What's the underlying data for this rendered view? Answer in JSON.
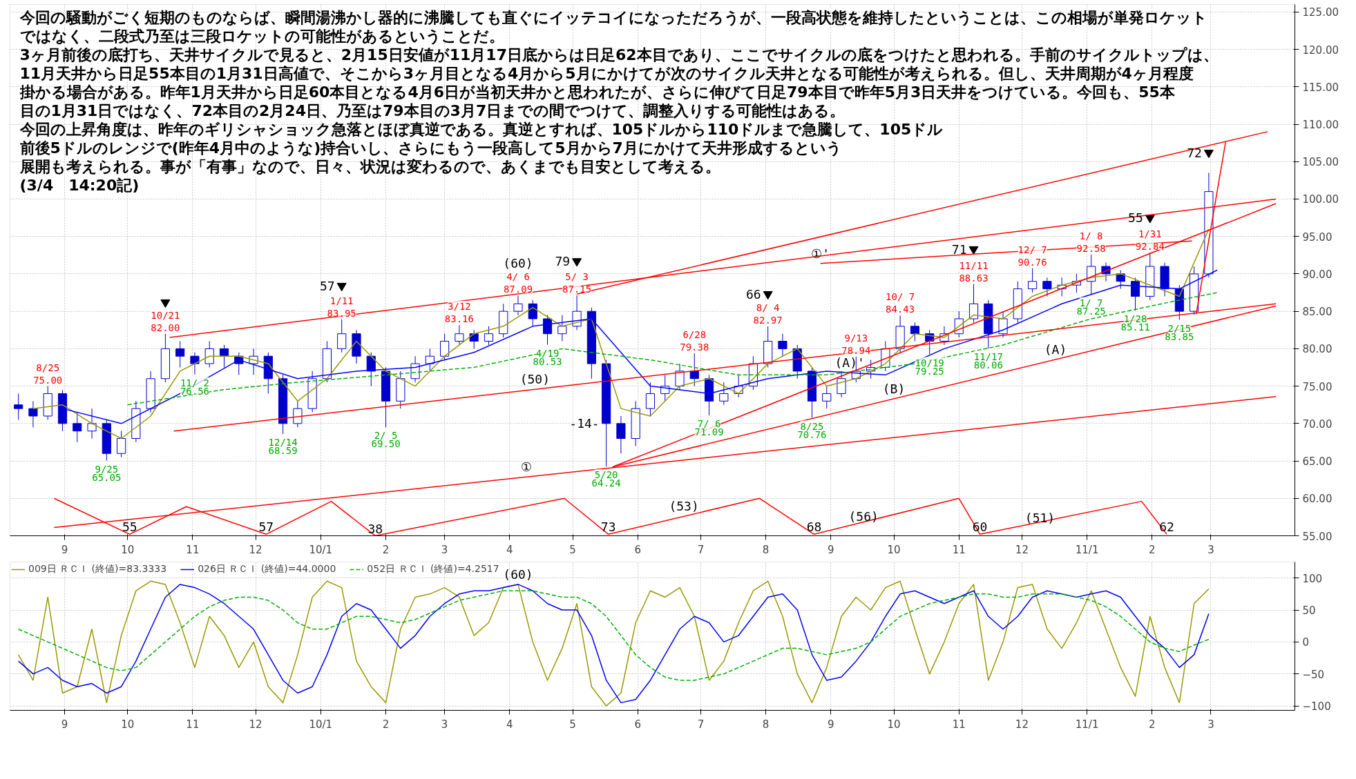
{
  "chart_data": [
    {
      "type": "candlestick",
      "color": "#0000cd",
      "grid": true,
      "xlim": [
        "2009-08-06",
        "2011-04-10"
      ],
      "ylim": [
        55,
        126
      ],
      "xticks": [
        {
          "value": "2009-09-01",
          "label": "9"
        },
        {
          "value": "2009-10-01",
          "label": "10"
        },
        {
          "value": "2009-11-01",
          "label": "11"
        },
        {
          "value": "2009-12-01",
          "label": "12"
        },
        {
          "value": "2010-01-01",
          "label": "10/1"
        },
        {
          "value": "2010-02-01",
          "label": "2"
        },
        {
          "value": "2010-03-01",
          "label": "3"
        },
        {
          "value": "2010-04-01",
          "label": "4"
        },
        {
          "value": "2010-05-01",
          "label": "5"
        },
        {
          "value": "2010-06-01",
          "label": "6"
        },
        {
          "value": "2010-07-01",
          "label": "7"
        },
        {
          "value": "2010-08-01",
          "label": "8"
        },
        {
          "value": "2010-09-01",
          "label": "9"
        },
        {
          "value": "2010-10-01",
          "label": "10"
        },
        {
          "value": "2010-11-01",
          "label": "11"
        },
        {
          "value": "2010-12-01",
          "label": "12"
        },
        {
          "value": "2011-01-01",
          "label": "11/1"
        },
        {
          "value": "2011-02-01",
          "label": "2"
        },
        {
          "value": "2011-03-01",
          "label": "3"
        }
      ],
      "yticks": [
        {
          "value": 55,
          "label": "55.00"
        },
        {
          "value": 60,
          "label": "60.00"
        },
        {
          "value": 65,
          "label": "65.00"
        },
        {
          "value": 70,
          "label": "70.00"
        },
        {
          "value": 75,
          "label": "75.00"
        },
        {
          "value": 80,
          "label": "80.00"
        },
        {
          "value": 85,
          "label": "85.00"
        },
        {
          "value": 90,
          "label": "90.00"
        },
        {
          "value": 95,
          "label": "95.00"
        },
        {
          "value": 100,
          "label": "100.00"
        },
        {
          "value": 105,
          "label": "105.00"
        },
        {
          "value": 110,
          "label": "110.00"
        },
        {
          "value": 115,
          "label": "115.00"
        },
        {
          "value": 120,
          "label": "120.00"
        },
        {
          "value": 125,
          "label": "125.00"
        }
      ],
      "x": [
        "2009-08-10",
        "2009-08-17",
        "2009-08-24",
        "2009-08-31",
        "2009-09-07",
        "2009-09-14",
        "2009-09-21",
        "2009-09-28",
        "2009-10-05",
        "2009-10-12",
        "2009-10-19",
        "2009-10-26",
        "2009-11-02",
        "2009-11-09",
        "2009-11-16",
        "2009-11-23",
        "2009-11-30",
        "2009-12-07",
        "2009-12-14",
        "2009-12-21",
        "2009-12-28",
        "2010-01-04",
        "2010-01-11",
        "2010-01-18",
        "2010-01-25",
        "2010-02-01",
        "2010-02-08",
        "2010-02-15",
        "2010-02-22",
        "2010-03-01",
        "2010-03-08",
        "2010-03-15",
        "2010-03-22",
        "2010-03-29",
        "2010-04-05",
        "2010-04-12",
        "2010-04-19",
        "2010-04-26",
        "2010-05-03",
        "2010-05-10",
        "2010-05-17",
        "2010-05-24",
        "2010-05-31",
        "2010-06-07",
        "2010-06-14",
        "2010-06-21",
        "2010-06-28",
        "2010-07-05",
        "2010-07-12",
        "2010-07-19",
        "2010-07-26",
        "2010-08-02",
        "2010-08-09",
        "2010-08-16",
        "2010-08-23",
        "2010-08-30",
        "2010-09-06",
        "2010-09-13",
        "2010-09-20",
        "2010-09-27",
        "2010-10-04",
        "2010-10-11",
        "2010-10-18",
        "2010-10-25",
        "2010-11-01",
        "2010-11-08",
        "2010-11-15",
        "2010-11-22",
        "2010-11-29",
        "2010-12-06",
        "2010-12-13",
        "2010-12-20",
        "2010-12-27",
        "2011-01-03",
        "2011-01-10",
        "2011-01-17",
        "2011-01-24",
        "2011-01-31",
        "2011-02-07",
        "2011-02-14",
        "2011-02-21",
        "2011-02-28"
      ],
      "ohlc": [
        [
          72.5,
          74,
          70.5,
          72
        ],
        [
          72,
          73,
          69.5,
          71
        ],
        [
          71,
          75.0,
          70.5,
          74
        ],
        [
          74,
          74.5,
          69,
          70
        ],
        [
          70,
          71.5,
          67.5,
          69
        ],
        [
          69,
          72,
          68,
          70
        ],
        [
          70,
          70.5,
          65.05,
          66
        ],
        [
          66,
          69,
          65.5,
          68
        ],
        [
          68,
          73,
          67.5,
          72
        ],
        [
          72,
          77,
          71.5,
          76
        ],
        [
          76,
          82.0,
          75.5,
          80
        ],
        [
          80,
          81,
          77.5,
          79
        ],
        [
          79,
          79.5,
          76.56,
          78
        ],
        [
          78,
          81,
          77.5,
          80
        ],
        [
          80,
          80.5,
          77.5,
          79
        ],
        [
          79,
          79.5,
          76.5,
          78
        ],
        [
          78,
          80,
          76.5,
          79
        ],
        [
          79,
          79.5,
          74,
          76
        ],
        [
          76,
          76.5,
          68.59,
          70
        ],
        [
          70,
          73,
          69.5,
          72
        ],
        [
          72,
          77,
          71.5,
          76
        ],
        [
          76,
          81,
          75.5,
          80
        ],
        [
          80,
          83.95,
          79.5,
          82
        ],
        [
          82,
          82.5,
          78,
          79
        ],
        [
          79,
          79.5,
          75,
          77
        ],
        [
          77,
          77.5,
          69.5,
          73
        ],
        [
          73,
          77,
          72,
          76
        ],
        [
          76,
          79,
          75.5,
          78
        ],
        [
          78,
          80,
          77,
          79
        ],
        [
          79,
          82,
          78.5,
          81
        ],
        [
          81,
          83.16,
          80.5,
          82
        ],
        [
          82,
          82.5,
          80,
          81
        ],
        [
          81,
          83,
          80.5,
          82
        ],
        [
          82,
          86,
          81.5,
          85
        ],
        [
          85,
          87.09,
          84.5,
          86
        ],
        [
          86,
          86.5,
          83,
          84
        ],
        [
          84,
          84.5,
          80.53,
          82
        ],
        [
          82,
          84.5,
          81,
          83
        ],
        [
          83,
          87.15,
          82.5,
          85
        ],
        [
          85,
          85.5,
          76,
          78
        ],
        [
          78,
          78.5,
          64.24,
          70
        ],
        [
          70,
          71,
          66,
          68
        ],
        [
          68,
          73,
          67,
          72
        ],
        [
          72,
          75.5,
          71,
          74
        ],
        [
          74,
          76.5,
          73,
          75
        ],
        [
          75,
          78,
          74.5,
          77
        ],
        [
          77,
          79.38,
          75,
          76
        ],
        [
          76,
          76.5,
          71.09,
          73
        ],
        [
          73,
          75.5,
          72.5,
          74
        ],
        [
          74,
          76.5,
          73.5,
          75
        ],
        [
          75,
          79,
          74.5,
          78
        ],
        [
          78,
          82.97,
          77.5,
          81
        ],
        [
          81,
          82,
          79,
          80
        ],
        [
          80,
          80.5,
          76,
          77
        ],
        [
          77,
          77.5,
          70.76,
          73
        ],
        [
          73,
          75,
          72,
          74
        ],
        [
          74,
          77,
          73.5,
          76
        ],
        [
          76,
          78.94,
          75.5,
          77
        ],
        [
          77,
          78.5,
          76,
          77.5
        ],
        [
          77.5,
          81,
          77,
          80
        ],
        [
          80,
          84.43,
          79.5,
          83
        ],
        [
          83,
          83.5,
          81,
          82
        ],
        [
          82,
          82.5,
          79.25,
          81
        ],
        [
          81,
          83,
          80.5,
          82
        ],
        [
          82,
          85,
          81.5,
          84
        ],
        [
          84,
          88.63,
          83.5,
          86
        ],
        [
          86,
          86.5,
          80.06,
          82
        ],
        [
          82,
          85,
          81.5,
          84
        ],
        [
          84,
          89,
          83.5,
          88
        ],
        [
          88,
          90.76,
          87.5,
          89
        ],
        [
          89,
          89.5,
          87,
          88
        ],
        [
          88,
          89.5,
          87,
          88.5
        ],
        [
          88.5,
          90,
          87.5,
          89
        ],
        [
          89,
          92.58,
          87.25,
          91
        ],
        [
          91,
          91.5,
          89,
          90
        ],
        [
          90,
          90.5,
          88,
          89
        ],
        [
          89,
          89.5,
          85.11,
          87
        ],
        [
          87,
          92.84,
          86.5,
          91
        ],
        [
          91,
          91.5,
          87,
          88
        ],
        [
          88,
          88.5,
          83.85,
          85
        ],
        [
          85,
          91,
          84.5,
          90
        ],
        [
          90,
          103.5,
          89.5,
          101
        ]
      ],
      "series": [
        {
          "type": "line",
          "color": "#999900",
          "x": [
            "2009-08-17",
            "2009-08-31",
            "2009-09-14",
            "2009-09-28",
            "2009-10-12",
            "2009-10-26",
            "2009-11-09",
            "2009-11-23",
            "2009-12-07",
            "2009-12-21",
            "2010-01-04",
            "2010-01-18",
            "2010-02-01",
            "2010-02-15",
            "2010-03-01",
            "2010-03-15",
            "2010-03-29",
            "2010-04-12",
            "2010-04-26",
            "2010-05-10",
            "2010-05-24",
            "2010-06-07",
            "2010-06-21",
            "2010-07-05",
            "2010-07-19",
            "2010-08-02",
            "2010-08-16",
            "2010-08-30",
            "2010-09-13",
            "2010-09-27",
            "2010-10-11",
            "2010-10-25",
            "2010-11-08",
            "2010-11-22",
            "2010-12-06",
            "2010-12-20",
            "2011-01-03",
            "2011-01-17",
            "2011-01-31",
            "2011-02-14",
            "2011-02-28"
          ],
          "values": [
            72,
            72.5,
            70,
            68,
            71,
            77,
            79,
            79,
            78,
            73,
            76,
            81,
            77,
            75,
            79,
            82,
            83,
            85.5,
            83,
            84,
            72,
            71,
            75,
            76,
            74,
            78,
            80,
            75,
            76,
            78,
            82,
            81.5,
            84.5,
            84,
            87,
            88.5,
            89.5,
            90,
            88.5,
            87,
            96
          ]
        },
        {
          "type": "line",
          "color": "#0000ff",
          "x": [
            "2009-08-31",
            "2009-09-28",
            "2009-10-26",
            "2009-11-23",
            "2009-12-21",
            "2010-01-18",
            "2010-02-15",
            "2010-03-15",
            "2010-04-12",
            "2010-05-10",
            "2010-06-07",
            "2010-07-05",
            "2010-08-02",
            "2010-08-30",
            "2010-09-27",
            "2010-10-25",
            "2010-11-22",
            "2010-12-20",
            "2011-01-17",
            "2011-02-14",
            "2011-03-04"
          ],
          "values": [
            72,
            70,
            74,
            78.5,
            76,
            77,
            77.5,
            79.5,
            83,
            84,
            75,
            74,
            76,
            77,
            76.5,
            80,
            82.5,
            86,
            88.5,
            88,
            90.5
          ]
        },
        {
          "type": "line",
          "color": "#00b000",
          "line_style": "dashed",
          "x": [
            "2009-10-01",
            "2009-11-15",
            "2009-12-20",
            "2010-02-01",
            "2010-03-15",
            "2010-04-26",
            "2010-06-07",
            "2010-07-19",
            "2010-08-30",
            "2010-10-11",
            "2010-11-22",
            "2011-01-03",
            "2011-02-14",
            "2011-03-04"
          ],
          "values": [
            72.5,
            74.5,
            75.5,
            76.5,
            77.5,
            80,
            78.5,
            76.5,
            76.5,
            78,
            80.5,
            84,
            86.5,
            87.5
          ]
        },
        {
          "type": "scatter",
          "marker": "triangle",
          "color": "#000000",
          "x": [
            "2009-10-19",
            "2010-01-11",
            "2010-05-03",
            "2010-08-02",
            "2010-11-08",
            "2011-01-31",
            "2011-02-28"
          ],
          "values": [
            86.2,
            88.4,
            91.7,
            87.3,
            93.3,
            97.5,
            106.2
          ]
        },
        {
          "type": "line",
          "color": "#ff0000",
          "x": [
            "2009-10-21",
            "2011-04-01"
          ],
          "values": [
            81.5,
            100.0
          ]
        },
        {
          "type": "line",
          "color": "#ff0000",
          "x": [
            "2009-10-23",
            "2011-04-01"
          ],
          "values": [
            69.0,
            86.0
          ]
        },
        {
          "type": "line",
          "color": "#ff0000",
          "x": [
            "2009-08-27",
            "2011-04-01"
          ],
          "values": [
            56.1,
            73.6
          ]
        },
        {
          "type": "line",
          "color": "#ff0000",
          "x": [
            "2010-05-03",
            "2011-03-28"
          ],
          "values": [
            87.3,
            109.0
          ]
        },
        {
          "type": "line",
          "color": "#ff0000",
          "x": [
            "2010-05-20",
            "2011-04-01"
          ],
          "values": [
            64.2,
            85.7
          ]
        },
        {
          "type": "line",
          "color": "#ff0000",
          "x": [
            "2010-05-20",
            "2011-04-01"
          ],
          "values": [
            64.2,
            99.4
          ]
        },
        {
          "type": "line",
          "color": "#ff0000",
          "x": [
            "2010-08-27",
            "2011-02-20"
          ],
          "values": [
            91.4,
            94.4
          ]
        },
        {
          "type": "line",
          "color": "#ff0000",
          "x": [
            "2011-02-22",
            "2011-03-08"
          ],
          "values": [
            84.6,
            107.6
          ]
        },
        {
          "type": "line",
          "color": "#ff0000",
          "x": [
            "2009-08-27",
            "2009-10-02",
            "2009-10-29",
            "2009-12-06",
            "2010-01-06",
            "2010-01-27",
            "2010-04-27",
            "2010-05-18",
            "2010-07-29",
            "2010-08-24",
            "2010-11-01",
            "2010-11-11",
            "2011-01-27",
            "2011-02-08"
          ],
          "values": [
            60.0,
            55.2,
            58.9,
            55.2,
            59.6,
            55.0,
            60.0,
            55.2,
            60.0,
            55.2,
            60.0,
            55.2,
            59.6,
            55.2
          ]
        }
      ],
      "annotations": [
        "今回の騒動がごく短期のものならば、瞬間湯沸かし器的に沸騰しても直ぐにイッテコイになっただろうが、一段高状態を維持したということは、この相場が単発ロケット",
        "ではなく、二段式乃至は三段ロケットの可能性があるということだ。",
        "3ヶ月前後の底打ち、天井サイクルで見ると、2月15日安値が11月17日底からは日足62本目であり、ここでサイクルの底をつけたと思われる。手前のサイクルトップは、",
        "11月天井から日足55本目の1月31日高値で、そこから3ヶ月目となる4月から5月にかけてが次のサイクル天井となる可能性が考えられる。但し、天井周期が4ヶ月程度",
        "掛かる場合がある。昨年1月天井から日足60本目となる4月6日が当初天井かと思われたが、さらに伸びて日足79本目で昨年5月3日天井をつけている。今回も、55本",
        "目の1月31日ではなく、72本目の2月24日、乃至は79本目の3月7日までの間でつけて、調整入りする可能性はある。",
        "今回の上昇角度は、昨年のギリシャショック急落とほぼ真逆である。真逆とすれば、105ドルから110ドルまで急騰して、105ドル",
        "前後5ドルのレンジで(昨年4月中のような)持合いし、さらにもう一段高して5月から7月にかけて天井形成するという",
        "展開も考えられる。事が「有事」なので、日々、状況は変わるので、あくまでも目安として考える。",
        "(3/4　14:20記)",
        {
          "text": "8/25\n75.00",
          "x": "2009-08-24",
          "y": 75.0
        },
        {
          "text": "10/21\n82.00",
          "x": "2009-10-19",
          "y": 82.0
        },
        {
          "text": "1/11\n83.95",
          "x": "2010-01-11",
          "y": 83.95
        },
        {
          "text": "57",
          "x": "2010-01-11",
          "y": 88.4
        },
        {
          "text": "3/12\n83.16",
          "x": "2010-03-08",
          "y": 83.16
        },
        {
          "text": "4/ 6\n87.09",
          "x": "2010-04-05",
          "y": 87.09
        },
        {
          "text": "(60)",
          "x": "2010-04-05",
          "y": 87.09
        },
        {
          "text": "5/ 3\n87.15",
          "x": "2010-05-03",
          "y": 87.15
        },
        {
          "text": "79",
          "x": "2010-05-03",
          "y": 91.7
        },
        {
          "text": "6/28\n79.38",
          "x": "2010-06-28",
          "y": 79.38
        },
        {
          "text": "8/ 4\n82.97",
          "x": "2010-08-02",
          "y": 82.97
        },
        {
          "text": "66",
          "x": "2010-08-02",
          "y": 87.3
        },
        {
          "text": "9/13\n78.94",
          "x": "2010-09-13",
          "y": 78.94
        },
        {
          "text": "10/ 7\n84.43",
          "x": "2010-10-04",
          "y": 84.43
        },
        {
          "text": "11/11\n88.63",
          "x": "2010-11-08",
          "y": 88.63
        },
        {
          "text": "71",
          "x": "2010-11-08",
          "y": 93.3
        },
        {
          "text": "12/ 7\n90.76",
          "x": "2010-12-06",
          "y": 90.76
        },
        {
          "text": "1/ 8\n92.58",
          "x": "2011-01-03",
          "y": 92.58
        },
        {
          "text": "1/31\n92.84",
          "x": "2011-01-31",
          "y": 92.84
        },
        {
          "text": "55",
          "x": "2011-01-31",
          "y": 97.5
        },
        {
          "text": "72",
          "x": "2011-02-28",
          "y": 106.2
        },
        {
          "text": "9/25\n65.05",
          "x": "2009-09-21",
          "y": 65.05
        },
        {
          "text": "11/ 2\n76.56",
          "x": "2009-11-02",
          "y": 76.56
        },
        {
          "text": "12/14\n68.59",
          "x": "2009-12-14",
          "y": 68.59
        },
        {
          "text": "2/ 5\n69.50",
          "x": "2010-02-01",
          "y": 69.5
        },
        {
          "text": "4/19\n80.53",
          "x": "2010-04-19",
          "y": 80.53
        },
        {
          "text": "5/20\n64.24",
          "x": "2010-05-17",
          "y": 64.24
        },
        {
          "text": "-14-",
          "x": "2010-05-17",
          "y": 70
        },
        {
          "text": "7/ 6\n71.09",
          "x": "2010-07-05",
          "y": 71.09
        },
        {
          "text": "8/25\n70.76",
          "x": "2010-08-23",
          "y": 70.76
        },
        {
          "text": "10/19\n79.25",
          "x": "2010-10-18",
          "y": 79.25
        },
        {
          "text": "11/17\n80.06",
          "x": "2010-11-15",
          "y": 80.06
        },
        {
          "text": "1/ 7\n87.25",
          "x": "2011-01-03",
          "y": 87.25
        },
        {
          "text": "1/28\n85.11",
          "x": "2011-01-24",
          "y": 85.11
        },
        {
          "text": "2/15\n83.85",
          "x": "2011-02-14",
          "y": 83.85
        },
        {
          "text": "(50)",
          "x": "2010-04-13",
          "y": 74.6
        },
        {
          "text": "①",
          "x": "2010-04-09",
          "y": 62.9
        },
        {
          "text": "①'",
          "x": "2010-08-27",
          "y": 91.4
        },
        {
          "text": "(A)'",
          "x": "2010-09-10",
          "y": 76.8
        },
        {
          "text": "(A)",
          "x": "2010-12-17",
          "y": 78.6
        },
        {
          "text": "(B)",
          "x": "2010-10-01",
          "y": 73.3
        },
        {
          "text": "55",
          "x": "2009-10-02",
          "y": 55.2
        },
        {
          "text": "57",
          "x": "2009-12-06",
          "y": 55.2
        },
        {
          "text": "38",
          "x": "2010-01-27",
          "y": 55.0
        },
        {
          "text": "73",
          "x": "2010-05-18",
          "y": 55.2
        },
        {
          "text": "(53)",
          "x": "2010-06-23",
          "y": 57.6
        },
        {
          "text": "68",
          "x": "2010-08-24",
          "y": 55.2
        },
        {
          "text": "(56)",
          "x": "2010-09-27",
          "y": 57.6
        },
        {
          "text": "60",
          "x": "2010-11-11",
          "y": 55.2
        },
        {
          "text": "(51)",
          "x": "2010-12-20",
          "y": 57.4
        },
        {
          "text": "62",
          "x": "2011-02-08",
          "y": 55.2
        }
      ]
    },
    {
      "type": "line",
      "grid": true,
      "legend": "top left",
      "xlim": [
        "2009-08-06",
        "2011-04-10"
      ],
      "ylim": [
        -107,
        125
      ],
      "xticks": [
        {
          "value": "2009-09-01",
          "label": "9"
        },
        {
          "value": "2009-10-01",
          "label": "10"
        },
        {
          "value": "2009-11-01",
          "label": "11"
        },
        {
          "value": "2009-12-01",
          "label": "12"
        },
        {
          "value": "2010-01-01",
          "label": "10/1"
        },
        {
          "value": "2010-02-01",
          "label": "2"
        },
        {
          "value": "2010-03-01",
          "label": "3"
        },
        {
          "value": "2010-04-01",
          "label": "4"
        },
        {
          "value": "2010-05-01",
          "label": "5"
        },
        {
          "value": "2010-06-01",
          "label": "6"
        },
        {
          "value": "2010-07-01",
          "label": "7"
        },
        {
          "value": "2010-08-01",
          "label": "8"
        },
        {
          "value": "2010-09-01",
          "label": "9"
        },
        {
          "value": "2010-10-01",
          "label": "10"
        },
        {
          "value": "2010-11-01",
          "label": "11"
        },
        {
          "value": "2010-12-01",
          "label": "12"
        },
        {
          "value": "2011-01-01",
          "label": "11/1"
        },
        {
          "value": "2011-02-01",
          "label": "2"
        },
        {
          "value": "2011-03-01",
          "label": "3"
        }
      ],
      "yticks": [
        100,
        50,
        0,
        -50,
        -100
      ],
      "x": [
        "2009-08-10",
        "2009-08-17",
        "2009-08-24",
        "2009-08-31",
        "2009-09-07",
        "2009-09-14",
        "2009-09-21",
        "2009-09-28",
        "2009-10-05",
        "2009-10-12",
        "2009-10-19",
        "2009-10-26",
        "2009-11-02",
        "2009-11-09",
        "2009-11-16",
        "2009-11-23",
        "2009-11-30",
        "2009-12-07",
        "2009-12-14",
        "2009-12-21",
        "2009-12-28",
        "2010-01-04",
        "2010-01-11",
        "2010-01-18",
        "2010-01-25",
        "2010-02-01",
        "2010-02-08",
        "2010-02-15",
        "2010-02-22",
        "2010-03-01",
        "2010-03-08",
        "2010-03-15",
        "2010-03-22",
        "2010-03-29",
        "2010-04-05",
        "2010-04-12",
        "2010-04-19",
        "2010-04-26",
        "2010-05-03",
        "2010-05-10",
        "2010-05-17",
        "2010-05-24",
        "2010-05-31",
        "2010-06-07",
        "2010-06-14",
        "2010-06-21",
        "2010-06-28",
        "2010-07-05",
        "2010-07-12",
        "2010-07-19",
        "2010-07-26",
        "2010-08-02",
        "2010-08-09",
        "2010-08-16",
        "2010-08-23",
        "2010-08-30",
        "2010-09-06",
        "2010-09-13",
        "2010-09-20",
        "2010-09-27",
        "2010-10-04",
        "2010-10-11",
        "2010-10-18",
        "2010-10-25",
        "2010-11-01",
        "2010-11-08",
        "2010-11-15",
        "2010-11-22",
        "2010-11-29",
        "2010-12-06",
        "2010-12-13",
        "2010-12-20",
        "2010-12-27",
        "2011-01-03",
        "2011-01-10",
        "2011-01-17",
        "2011-01-24",
        "2011-01-31",
        "2011-02-07",
        "2011-02-14",
        "2011-02-21",
        "2011-02-28"
      ],
      "series": [
        {
          "name": "009日 ＲＣＩ (終値)=83.3333",
          "color": "#999900",
          "values": [
            -20,
            -60,
            70,
            -80,
            -70,
            20,
            -95,
            10,
            80,
            95,
            90,
            30,
            -40,
            40,
            10,
            -40,
            0,
            -70,
            -95,
            -20,
            70,
            95,
            85,
            -30,
            -70,
            -95,
            20,
            70,
            75,
            85,
            70,
            10,
            30,
            85,
            90,
            0,
            -60,
            -10,
            60,
            -70,
            -100,
            -80,
            30,
            80,
            70,
            85,
            40,
            -60,
            -30,
            30,
            80,
            95,
            40,
            -50,
            -95,
            -40,
            40,
            70,
            50,
            85,
            95,
            20,
            -50,
            0,
            60,
            90,
            -60,
            0,
            85,
            90,
            20,
            -10,
            30,
            80,
            20,
            -40,
            -85,
            40,
            -40,
            -95,
            60,
            83
          ]
        },
        {
          "name": "026日 ＲＣＩ (終値)=44.0000",
          "color": "#0000ff",
          "values": [
            -30,
            -50,
            -40,
            -60,
            -70,
            -65,
            -80,
            -70,
            -30,
            20,
            70,
            90,
            85,
            75,
            60,
            40,
            20,
            -20,
            -60,
            -80,
            -70,
            -20,
            40,
            60,
            50,
            20,
            -10,
            10,
            40,
            60,
            75,
            80,
            80,
            85,
            90,
            80,
            60,
            50,
            50,
            10,
            -60,
            -95,
            -90,
            -60,
            -20,
            20,
            40,
            30,
            0,
            10,
            40,
            70,
            75,
            50,
            -20,
            -60,
            -55,
            -30,
            0,
            40,
            75,
            80,
            70,
            60,
            70,
            80,
            40,
            20,
            40,
            70,
            80,
            75,
            70,
            75,
            80,
            70,
            40,
            10,
            -10,
            -40,
            -20,
            44.0
          ]
        },
        {
          "name": "052日 ＲＣＩ (終値)=4.2517",
          "color": "#00b000",
          "line_style": "dashed",
          "values": [
            20,
            10,
            0,
            -10,
            -20,
            -30,
            -40,
            -45,
            -40,
            -20,
            0,
            20,
            40,
            55,
            65,
            70,
            70,
            65,
            50,
            30,
            20,
            20,
            30,
            40,
            40,
            35,
            30,
            35,
            45,
            55,
            65,
            70,
            75,
            80,
            80,
            80,
            75,
            70,
            70,
            60,
            40,
            10,
            -20,
            -40,
            -55,
            -60,
            -60,
            -55,
            -50,
            -40,
            -30,
            -20,
            -10,
            -10,
            -15,
            -20,
            -15,
            -10,
            0,
            20,
            40,
            50,
            60,
            65,
            70,
            75,
            75,
            70,
            70,
            75,
            75,
            75,
            70,
            65,
            55,
            40,
            20,
            0,
            -10,
            -15,
            -5,
            4
          ]
        }
      ],
      "annotations": [
        {
          "text": "(60)",
          "x": "2010-04-05",
          "y": 90
        }
      ]
    }
  ]
}
